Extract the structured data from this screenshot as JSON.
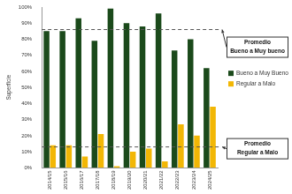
{
  "chart_data": {
    "type": "bar",
    "y_label": "Superficie",
    "categories": [
      "2014/15",
      "2015/16",
      "2016/17",
      "2017/18",
      "2018/19",
      "2019/20",
      "2020/21",
      "2021/22",
      "2022/23",
      "2023/24",
      "2024/25"
    ],
    "series": [
      {
        "name": "Bueno a Muy Bueno",
        "color": "#1b4a1b",
        "values": [
          85,
          85,
          93,
          79,
          99,
          90,
          88,
          96,
          73,
          80,
          62
        ]
      },
      {
        "name": "Regular a Malo",
        "color": "#f2b705",
        "values": [
          14,
          14,
          7,
          21,
          1,
          10,
          12,
          4,
          27,
          20,
          38
        ]
      }
    ],
    "ylim": [
      0,
      100
    ],
    "yticks": [
      {
        "value": 0,
        "label": "0%"
      },
      {
        "value": 10,
        "label": "10%"
      },
      {
        "value": 20,
        "label": "20%"
      },
      {
        "value": 30,
        "label": "30%"
      },
      {
        "value": 40,
        "label": "40%"
      },
      {
        "value": 50,
        "label": "50%"
      },
      {
        "value": 60,
        "label": "60%"
      },
      {
        "value": 70,
        "label": "70%"
      },
      {
        "value": 80,
        "label": "80%"
      },
      {
        "value": 90,
        "label": "90%"
      },
      {
        "value": 100,
        "label": "100%"
      }
    ],
    "annotations": [
      {
        "label": "Promedio Bueno a Muy bueno",
        "value": 86
      },
      {
        "label": "Promedio Regular a Malo",
        "value": 13
      }
    ],
    "grid": false,
    "legend": "right"
  }
}
